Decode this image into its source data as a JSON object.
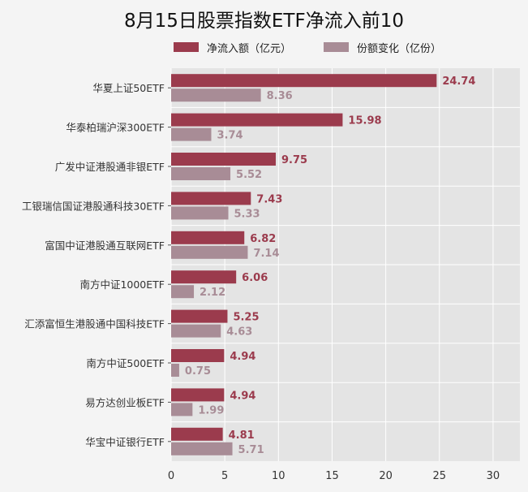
{
  "title": "8月15日股票指数ETF净流入前10",
  "colors": {
    "net_inflow": "#9b3b4d",
    "share_change": "#a88c96",
    "plot_bg": "#e4e4e4",
    "grid": "#ffffff"
  },
  "chart_data": {
    "type": "bar",
    "orientation": "horizontal",
    "title": "8月15日股票指数ETF净流入前10",
    "categories": [
      "华夏上证50ETF",
      "华泰柏瑞沪深300ETF",
      "广发中证港股通非银ETF",
      "工银瑞信国证港股通科技30ETF",
      "富国中证港股通互联网ETF",
      "南方中证1000ETF",
      "汇添富恒生港股通中国科技ETF",
      "南方中证500ETF",
      "易方达创业板ETF",
      "华宝中证银行ETF"
    ],
    "series": [
      {
        "name": "净流入额（亿元）",
        "values": [
          24.74,
          15.98,
          9.75,
          7.43,
          6.82,
          6.06,
          5.25,
          4.94,
          4.94,
          4.81
        ]
      },
      {
        "name": "份额变化（亿份）",
        "values": [
          8.36,
          3.74,
          5.52,
          5.33,
          7.14,
          2.12,
          4.63,
          0.75,
          1.99,
          5.71
        ]
      }
    ],
    "value_labels": [
      [
        "24.74",
        "15.98",
        "9.75",
        "7.43",
        "6.82",
        "6.06",
        "5.25",
        "4.94",
        "4.94",
        "4.81"
      ],
      [
        "8.36",
        "3.74",
        "5.52",
        "5.33",
        "7.14",
        "2.12",
        "4.63",
        "0.75",
        "1.99",
        "5.71"
      ]
    ],
    "xlim": [
      0,
      32.5
    ],
    "xticks": [
      0,
      5,
      10,
      15,
      20,
      25,
      30
    ],
    "xtick_labels": [
      "0",
      "5",
      "10",
      "15",
      "20",
      "25",
      "30"
    ],
    "grid": true,
    "legend": "top"
  }
}
